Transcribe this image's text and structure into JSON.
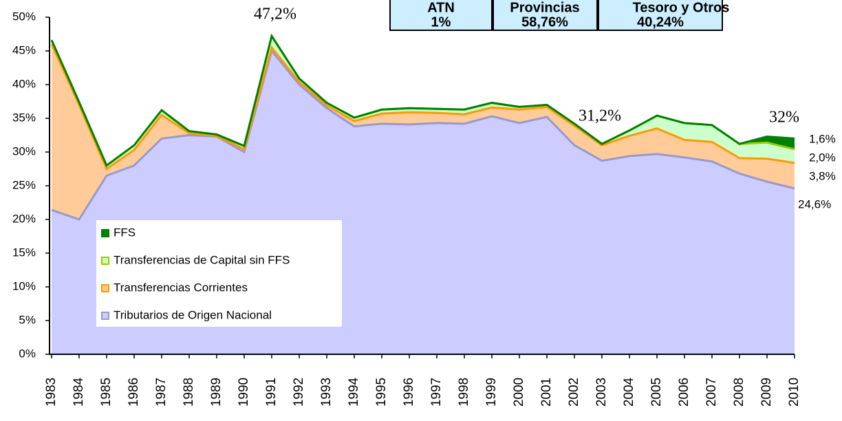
{
  "chart_data": {
    "type": "stacked_area",
    "categories": [
      "1983",
      "1984",
      "1985",
      "1986",
      "1987",
      "1988",
      "1989",
      "1990",
      "1991",
      "1992",
      "1993",
      "1994",
      "1995",
      "1996",
      "1997",
      "1998",
      "1999",
      "2000",
      "2001",
      "2002",
      "2003",
      "2004",
      "2005",
      "2006",
      "2007",
      "2008",
      "2009",
      "2010"
    ],
    "series": [
      {
        "name": "Tributarios de Origen Nacional",
        "color": "#ccccff",
        "line_color": "#9999cc",
        "values": [
          21.4,
          20.0,
          26.5,
          28.0,
          32.0,
          32.5,
          32.3,
          30.0,
          45.0,
          40.0,
          36.5,
          33.8,
          34.2,
          34.1,
          34.3,
          34.2,
          35.3,
          34.3,
          35.2,
          31.0,
          28.7,
          29.4,
          29.7,
          29.2,
          28.6,
          26.8,
          25.6,
          24.6
        ]
      },
      {
        "name": "Transferencias Corrientes",
        "color": "#ffcc99",
        "line_color": "#ff9900",
        "values": [
          24.6,
          17.0,
          1.0,
          2.3,
          3.5,
          0.3,
          0.1,
          0.4,
          0.5,
          0.4,
          0.4,
          0.8,
          1.5,
          1.8,
          1.5,
          1.4,
          1.3,
          2.0,
          1.5,
          2.9,
          2.3,
          3.0,
          3.8,
          2.6,
          2.9,
          2.3,
          3.4,
          3.8
        ]
      },
      {
        "name": "Transferencias de Capital sin FFS",
        "color": "#ccffcc",
        "line_color": "#99cc00",
        "values": [
          0.6,
          0.4,
          0.5,
          0.7,
          0.7,
          0.3,
          0.2,
          0.5,
          1.7,
          0.5,
          0.4,
          0.5,
          0.6,
          0.6,
          0.6,
          0.7,
          0.7,
          0.4,
          0.3,
          0.3,
          0.2,
          0.8,
          1.9,
          2.5,
          2.5,
          2.1,
          2.4,
          2.0
        ]
      },
      {
        "name": "FFS",
        "color": "#008000",
        "line_color": "#008000",
        "values": [
          0,
          0,
          0,
          0,
          0,
          0,
          0,
          0,
          0,
          0,
          0,
          0,
          0,
          0,
          0,
          0,
          0,
          0,
          0,
          0,
          0,
          0,
          0,
          0,
          0,
          0,
          0.9,
          1.6
        ]
      }
    ],
    "ylim": [
      0,
      50
    ],
    "yticks": [
      {
        "value": 0,
        "label": "0%"
      },
      {
        "value": 5,
        "label": "5%"
      },
      {
        "value": 10,
        "label": "10%"
      },
      {
        "value": 15,
        "label": "15%"
      },
      {
        "value": 20,
        "label": "20%"
      },
      {
        "value": 25,
        "label": "25%"
      },
      {
        "value": 30,
        "label": "30%"
      },
      {
        "value": 35,
        "label": "35%"
      },
      {
        "value": 40,
        "label": "40%"
      },
      {
        "value": 45,
        "label": "45%"
      },
      {
        "value": 50,
        "label": "50%"
      }
    ],
    "annotations": [
      "47,2%",
      "31,2%",
      "32%",
      "1,6%",
      "2,0%",
      "3,8%",
      "24,6%"
    ],
    "boxes": [
      {
        "title": "ATN",
        "value": "1%"
      },
      {
        "title": "Provincias",
        "value": "58,76%"
      },
      {
        "title": "Tesoro y Otros",
        "value": "40,24%"
      }
    ]
  }
}
